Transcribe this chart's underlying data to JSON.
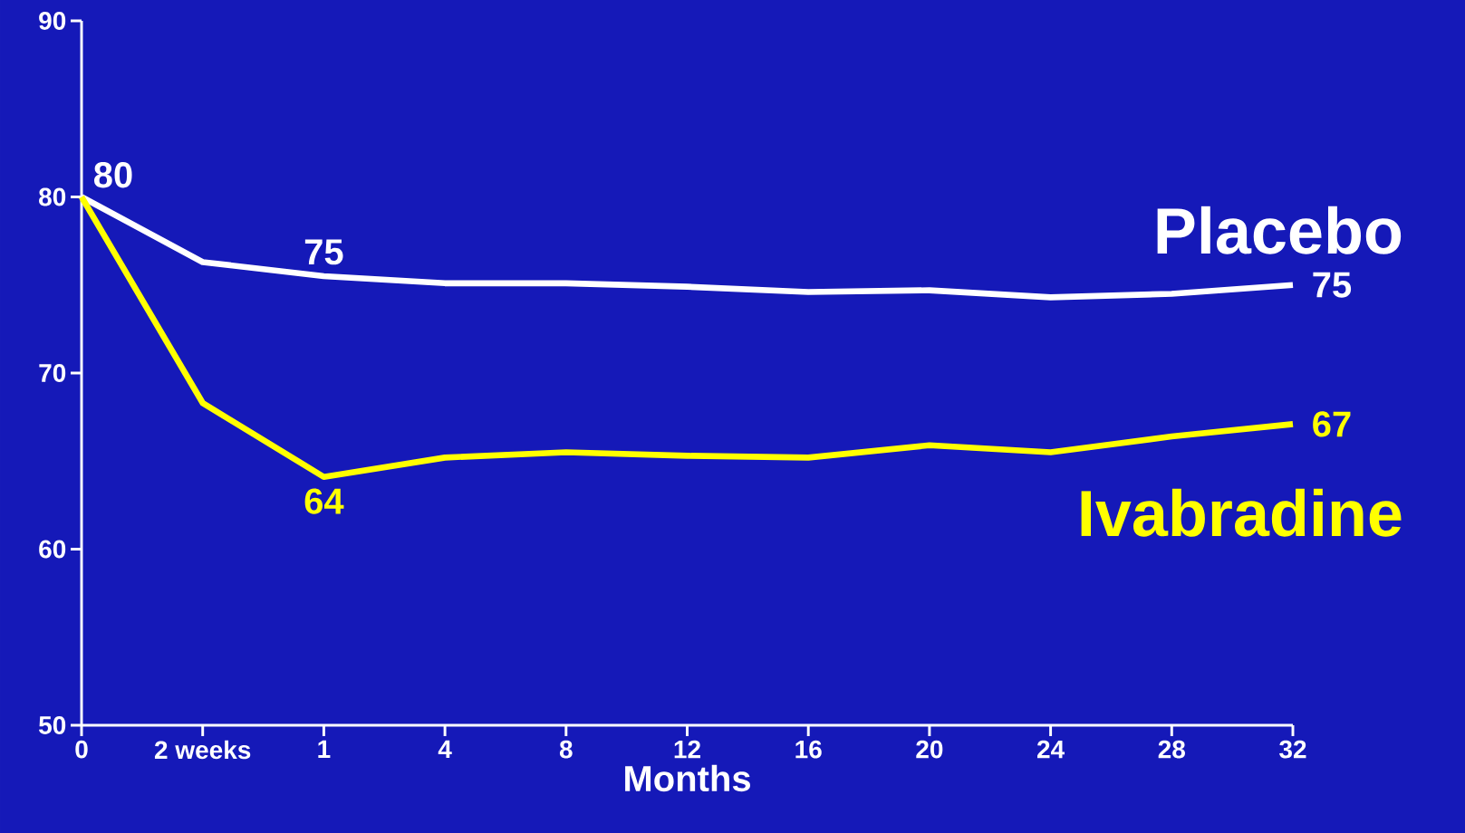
{
  "chart_data": {
    "type": "line",
    "xlabel": "Months",
    "ylim": [
      50,
      90
    ],
    "categories": [
      "0",
      "2 weeks",
      "1",
      "4",
      "8",
      "12",
      "16",
      "20",
      "24",
      "28",
      "32"
    ],
    "yticks": [
      50,
      60,
      70,
      80,
      90
    ],
    "marker": "none",
    "line_style": "solid",
    "series": [
      {
        "name": "Placebo",
        "color": "#ffffff",
        "values": [
          80,
          76.3,
          75.5,
          75.1,
          75.1,
          74.9,
          74.6,
          74.7,
          74.3,
          74.5,
          75.0
        ]
      },
      {
        "name": "Ivabradine",
        "color": "#ffff00",
        "values": [
          80,
          68.3,
          64.1,
          65.2,
          65.5,
          65.3,
          65.2,
          65.9,
          65.5,
          66.4,
          67.1
        ]
      }
    ],
    "annotations": [
      {
        "text": "80",
        "x": "0",
        "y": 80
      },
      {
        "text": "75",
        "x": "1",
        "y": 75.5
      },
      {
        "text": "64",
        "x": "1",
        "y": 64.1
      },
      {
        "text": "75",
        "x": "32",
        "y": 75.0
      },
      {
        "text": "67",
        "x": "32",
        "y": 67.1
      }
    ]
  }
}
